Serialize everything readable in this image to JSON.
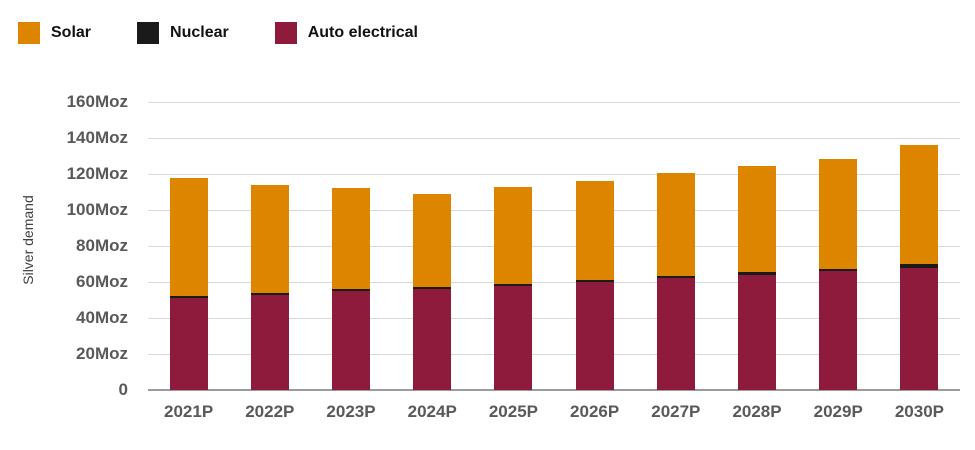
{
  "legend": [
    {
      "label": "Solar",
      "color": "#DE8500"
    },
    {
      "label": "Nuclear",
      "color": "#1A1A1A"
    },
    {
      "label": "Auto electrical",
      "color": "#8E1B3B"
    }
  ],
  "chart_data": {
    "type": "bar",
    "stacked": true,
    "title": "",
    "xlabel": "",
    "ylabel": "Silver demand",
    "ylim": [
      0,
      160
    ],
    "grid": true,
    "legend_position": "top-left",
    "yticks": [
      {
        "value": 160,
        "label": "160Moz"
      },
      {
        "value": 140,
        "label": "140Moz"
      },
      {
        "value": 120,
        "label": "120Moz"
      },
      {
        "value": 100,
        "label": "100Moz"
      },
      {
        "value": 80,
        "label": "80Moz"
      },
      {
        "value": 60,
        "label": "60Moz"
      },
      {
        "value": 40,
        "label": "40Moz"
      },
      {
        "value": 20,
        "label": "20Moz"
      },
      {
        "value": 0,
        "label": "0"
      }
    ],
    "categories": [
      "2021P",
      "2022P",
      "2023P",
      "2024P",
      "2025P",
      "2026P",
      "2027P",
      "2028P",
      "2029P",
      "2030P"
    ],
    "series": [
      {
        "name": "Auto electrical",
        "color": "#8E1B3B",
        "values": [
          51,
          53,
          55,
          56,
          58,
          60,
          62,
          64,
          66,
          68
        ]
      },
      {
        "name": "Nuclear",
        "color": "#1A1A1A",
        "values": [
          1,
          1,
          1,
          1,
          1,
          1,
          1.5,
          1.5,
          1.5,
          2
        ]
      },
      {
        "name": "Solar",
        "color": "#DE8500",
        "values": [
          66,
          60,
          56,
          52,
          54,
          55,
          57,
          59,
          61,
          66
        ]
      }
    ]
  }
}
